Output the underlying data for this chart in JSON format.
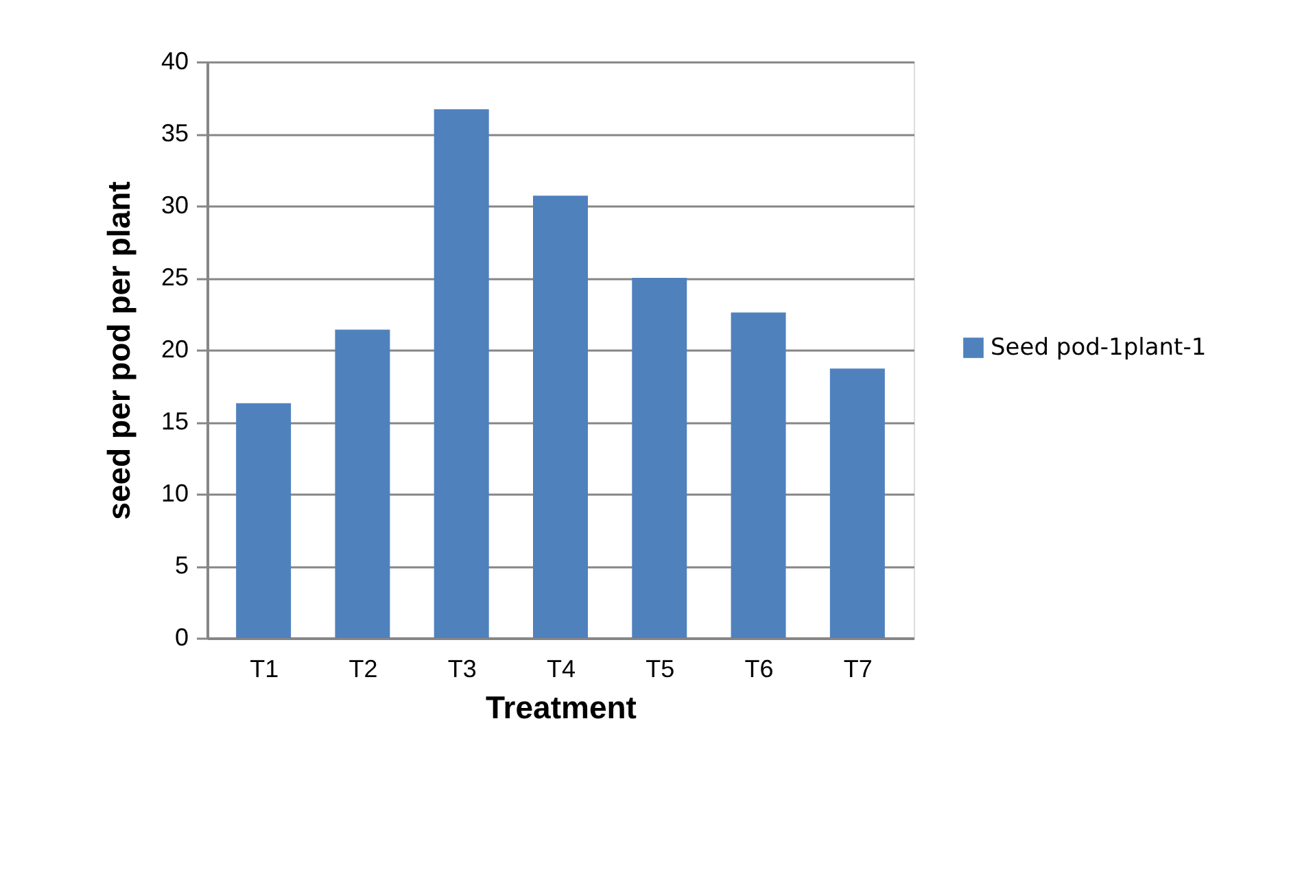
{
  "chart_data": {
    "type": "bar",
    "xlabel": "Treatment",
    "ylabel": "seed per pod per plant",
    "categories": [
      "T1",
      "T2",
      "T3",
      "T4",
      "T5",
      "T6",
      "T7"
    ],
    "series": [
      {
        "name": "Seed pod-1plant-1",
        "color": "#4f81bd",
        "values": [
          16.3,
          21.4,
          36.7,
          30.7,
          25.0,
          22.6,
          18.7
        ]
      }
    ],
    "ylim": [
      0,
      40
    ],
    "yticks": [
      0,
      5,
      10,
      15,
      20,
      25,
      30,
      35,
      40
    ],
    "grid": "y",
    "legend": "right"
  }
}
